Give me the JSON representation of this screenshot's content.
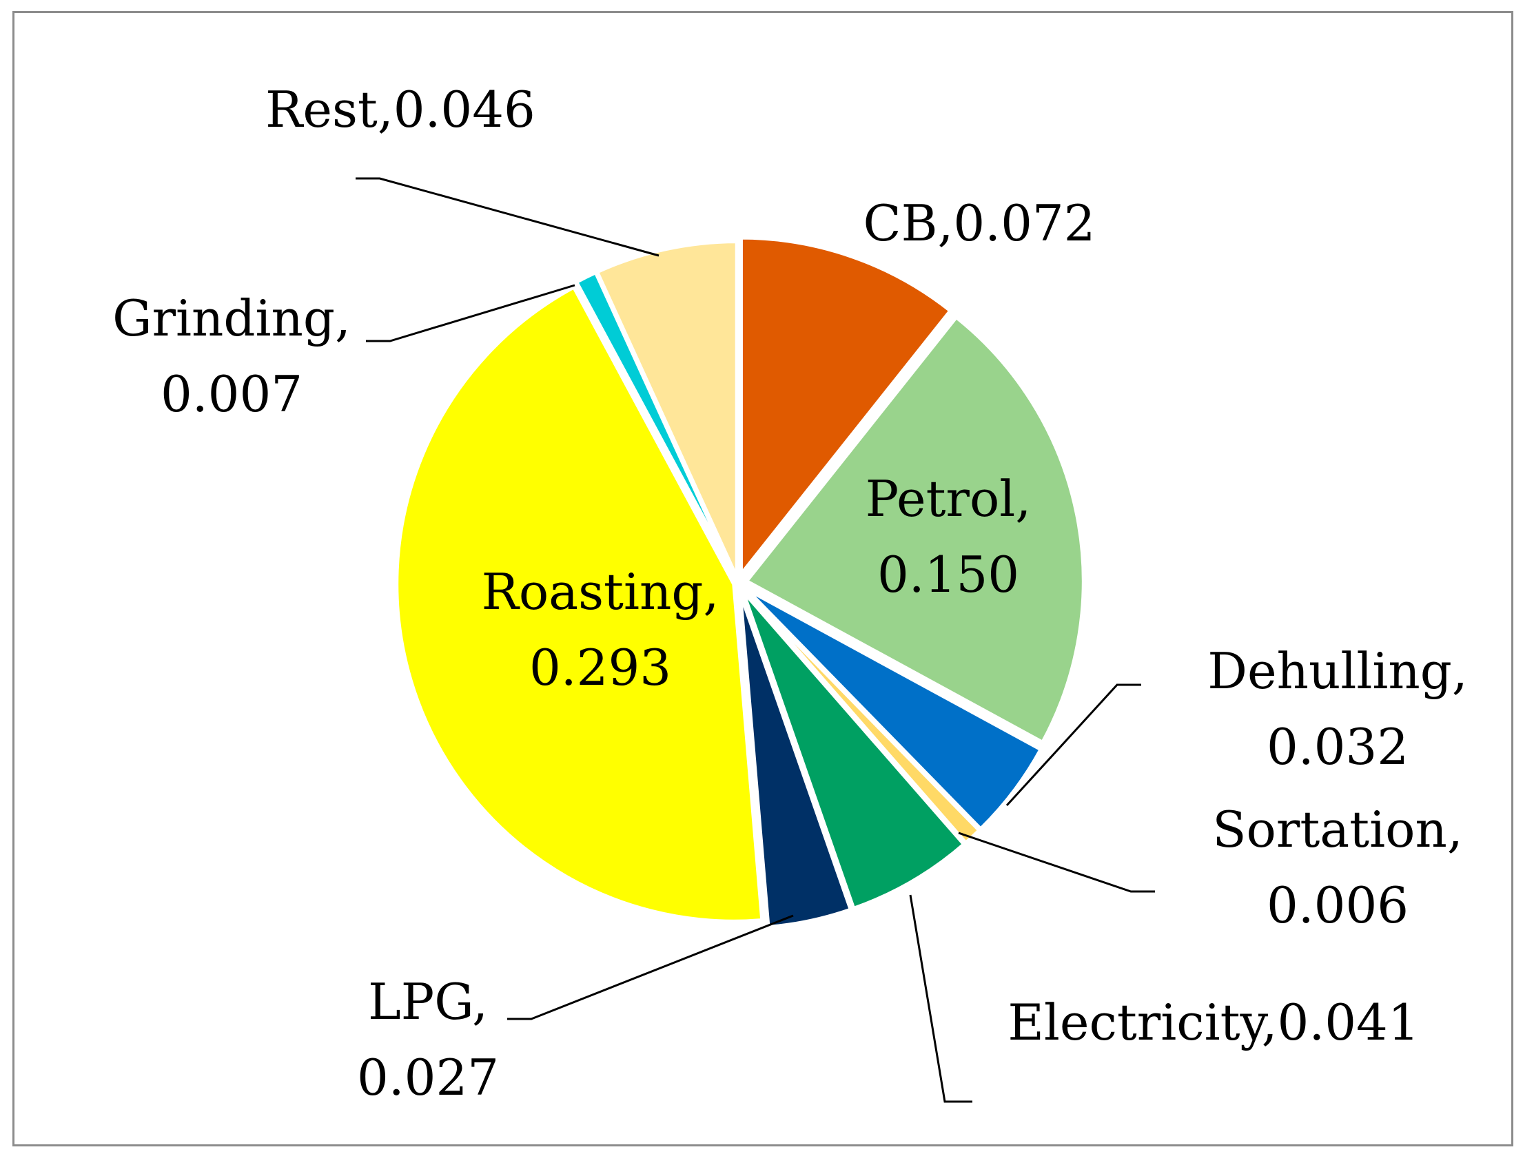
{
  "chart_data": {
    "type": "pie",
    "title": "",
    "slices": [
      {
        "name": "CB",
        "value": 0.072,
        "color": "#E05A00"
      },
      {
        "name": "Petrol",
        "value": 0.15,
        "color": "#99D38C"
      },
      {
        "name": "Dehulling",
        "value": 0.032,
        "color": "#0070C8"
      },
      {
        "name": "Sortation",
        "value": 0.006,
        "color": "#FFD966"
      },
      {
        "name": "Electricity",
        "value": 0.041,
        "color": "#00A062"
      },
      {
        "name": "LPG",
        "value": 0.027,
        "color": "#003066"
      },
      {
        "name": "Roasting",
        "value": 0.293,
        "color": "#FFFF00"
      },
      {
        "name": "Grinding",
        "value": 0.007,
        "color": "#00CCD6"
      },
      {
        "name": "Rest",
        "value": 0.046,
        "color": "#FFE699"
      }
    ],
    "labels": [
      {
        "line1": "CB,0.072"
      },
      {
        "line1": "Petrol,",
        "line2": "0.150"
      },
      {
        "line1": "Dehulling,",
        "line2": "0.032"
      },
      {
        "line1": "Sortation,",
        "line2": "0.006"
      },
      {
        "line1": "Electricity,0.041"
      },
      {
        "line1": "LPG,",
        "line2": "0.027"
      },
      {
        "line1": "Roasting,",
        "line2": "0.293"
      },
      {
        "line1": "Grinding,",
        "line2": "0.007"
      },
      {
        "line1": "Rest,0.046"
      }
    ],
    "start_angle_deg": 0,
    "direction": "clockwise",
    "legend": "none"
  }
}
